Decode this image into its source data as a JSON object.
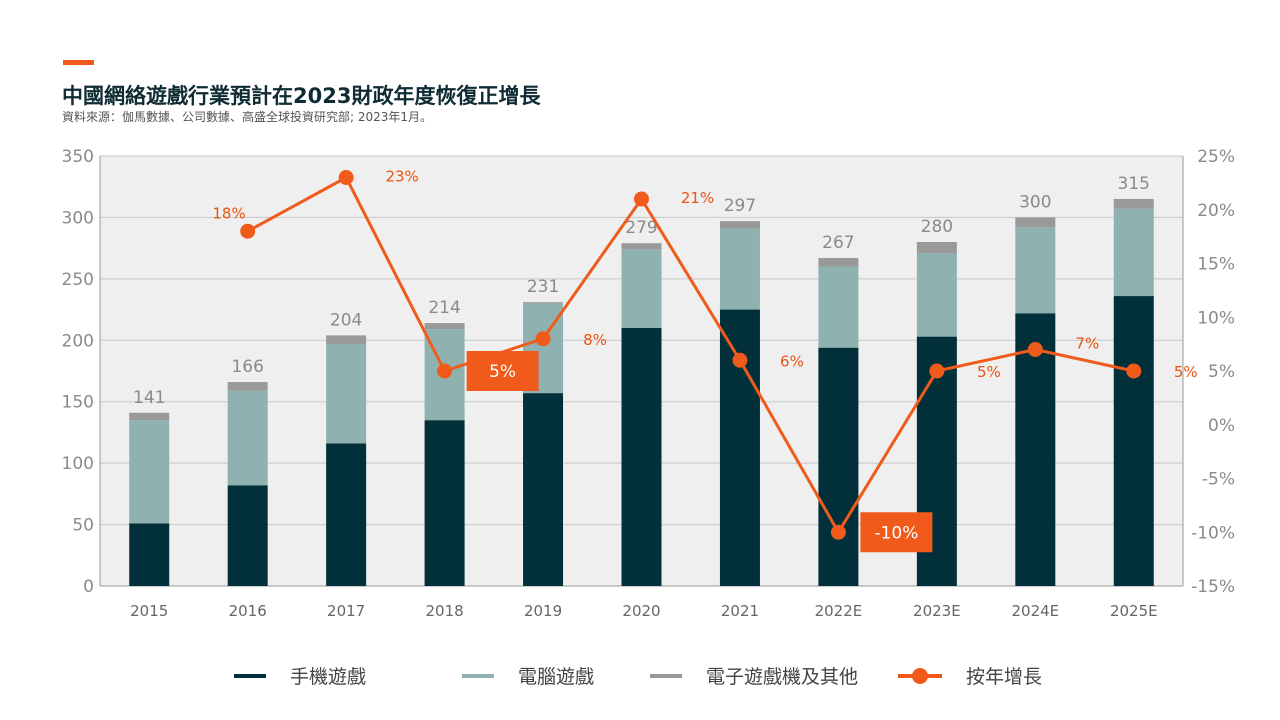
{
  "header": {
    "title": "中國網絡遊戲行業預計在2023財政年度恢復正增長",
    "source": "資料來源：伽馬數據、公司數據、高盛全球投資研究部; 2023年1月。"
  },
  "colors": {
    "mobile": "#02303a",
    "pc": "#8fb1b0",
    "console": "#999999",
    "growth": "#f05a1a",
    "plot_bg": "#efefef",
    "grid": "#c8c8c8"
  },
  "legend": {
    "mobile": "手機遊戲",
    "pc": "電腦遊戲",
    "console": "電子遊戲機及其他",
    "growth": "按年增長"
  },
  "chart_data": {
    "type": "bar",
    "stacked": true,
    "categories": [
      "2015",
      "2016",
      "2017",
      "2018",
      "2019",
      "2020",
      "2021",
      "2022E",
      "2023E",
      "2024E",
      "2025E"
    ],
    "series": [
      {
        "name": "手機遊戲",
        "values": [
          51,
          82,
          116,
          135,
          157,
          210,
          225,
          194,
          203,
          222,
          236
        ]
      },
      {
        "name": "電腦遊戲",
        "values": [
          84,
          77,
          81,
          74,
          73,
          64,
          66,
          66,
          68,
          70,
          71
        ]
      },
      {
        "name": "電子遊戲機及其他",
        "values": [
          6,
          7,
          7,
          5,
          1,
          5,
          6,
          7,
          9,
          8,
          8
        ]
      }
    ],
    "totals": [
      141,
      166,
      204,
      214,
      231,
      279,
      297,
      267,
      280,
      300,
      315
    ],
    "yoy_growth": {
      "name": "按年增長",
      "values": [
        null,
        18,
        23,
        5,
        8,
        21,
        6,
        -10,
        5,
        7,
        5
      ],
      "labels": [
        "",
        "18%",
        "23%",
        "5%",
        "8%",
        "21%",
        "6%",
        "-10%",
        "5%",
        "7%",
        "5%"
      ],
      "boxed": [
        3,
        7
      ]
    },
    "left_axis": {
      "min": 0,
      "max": 350,
      "step": 50,
      "ticks": [
        "0",
        "50",
        "100",
        "150",
        "200",
        "250",
        "300",
        "350"
      ]
    },
    "right_axis": {
      "min": -15,
      "max": 25,
      "step": 5,
      "ticks": [
        "-15%",
        "-10%",
        "-5%",
        "0%",
        "5%",
        "10%",
        "15%",
        "20%",
        "25%"
      ]
    },
    "grid": true,
    "legend_position": "bottom"
  }
}
